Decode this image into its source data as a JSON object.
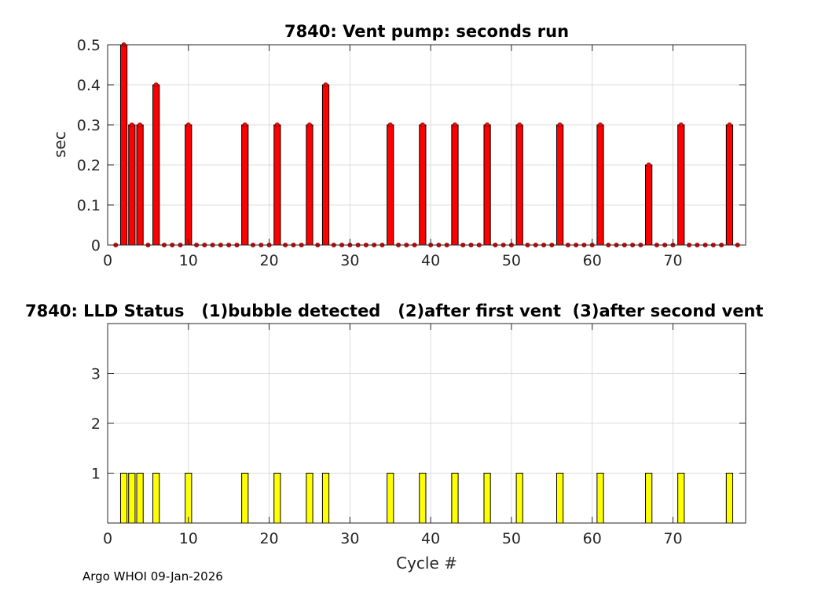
{
  "footer": "Argo WHOI 09-Jan-2026",
  "chart_data": [
    {
      "type": "bar",
      "title": "7840: Vent pump: seconds run",
      "xlabel": "",
      "ylabel": "sec",
      "xlim": [
        0,
        79
      ],
      "ylim": [
        0,
        0.5
      ],
      "xticks": [
        "0",
        "10",
        "20",
        "30",
        "40",
        "50",
        "60",
        "70"
      ],
      "yticks": [
        "0",
        "0.1",
        "0.2",
        "0.3",
        "0.4",
        "0.5"
      ],
      "grid": true,
      "bar_color": "#ff0000",
      "marker_color": "#ff0000",
      "x": [
        1,
        2,
        3,
        4,
        5,
        6,
        7,
        8,
        9,
        10,
        11,
        12,
        13,
        14,
        15,
        16,
        17,
        18,
        19,
        20,
        21,
        22,
        23,
        24,
        25,
        26,
        27,
        28,
        29,
        30,
        31,
        32,
        33,
        34,
        35,
        36,
        37,
        38,
        39,
        40,
        41,
        42,
        43,
        44,
        45,
        46,
        47,
        48,
        49,
        50,
        51,
        52,
        53,
        54,
        55,
        56,
        57,
        58,
        59,
        60,
        61,
        62,
        63,
        64,
        65,
        66,
        67,
        68,
        69,
        70,
        71,
        72,
        73,
        74,
        75,
        76,
        77,
        78
      ],
      "values": [
        0,
        0.5,
        0.3,
        0.3,
        0,
        0.4,
        0,
        0,
        0,
        0.3,
        0,
        0,
        0,
        0,
        0,
        0,
        0.3,
        0,
        0,
        0,
        0.3,
        0,
        0,
        0,
        0.3,
        0,
        0.4,
        0,
        0,
        0,
        0,
        0,
        0,
        0,
        0.3,
        0,
        0,
        0,
        0.3,
        0,
        0,
        0,
        0.3,
        0,
        0,
        0,
        0.3,
        0,
        0,
        0,
        0.3,
        0,
        0,
        0,
        0,
        0.3,
        0,
        0,
        0,
        0,
        0.3,
        0,
        0,
        0,
        0,
        0,
        0.2,
        0,
        0,
        0,
        0.3,
        0,
        0,
        0,
        0,
        0,
        0.3,
        0
      ]
    },
    {
      "type": "bar",
      "title": "7840: LLD Status   (1)bubble detected   (2)after first vent  (3)after second vent",
      "xlabel": "Cycle #",
      "ylabel": "",
      "xlim": [
        0,
        79
      ],
      "ylim": [
        0,
        4
      ],
      "xticks": [
        "0",
        "10",
        "20",
        "30",
        "40",
        "50",
        "60",
        "70"
      ],
      "yticks": [
        "1",
        "2",
        "3"
      ],
      "grid": true,
      "bar_color": "#ffff00",
      "x": [
        1,
        2,
        3,
        4,
        5,
        6,
        7,
        8,
        9,
        10,
        11,
        12,
        13,
        14,
        15,
        16,
        17,
        18,
        19,
        20,
        21,
        22,
        23,
        24,
        25,
        26,
        27,
        28,
        29,
        30,
        31,
        32,
        33,
        34,
        35,
        36,
        37,
        38,
        39,
        40,
        41,
        42,
        43,
        44,
        45,
        46,
        47,
        48,
        49,
        50,
        51,
        52,
        53,
        54,
        55,
        56,
        57,
        58,
        59,
        60,
        61,
        62,
        63,
        64,
        65,
        66,
        67,
        68,
        69,
        70,
        71,
        72,
        73,
        74,
        75,
        76,
        77,
        78
      ],
      "values": [
        0,
        1,
        1,
        1,
        0,
        1,
        0,
        0,
        0,
        1,
        0,
        0,
        0,
        0,
        0,
        0,
        1,
        0,
        0,
        0,
        1,
        0,
        0,
        0,
        1,
        0,
        1,
        0,
        0,
        0,
        0,
        0,
        0,
        0,
        1,
        0,
        0,
        0,
        1,
        0,
        0,
        0,
        1,
        0,
        0,
        0,
        1,
        0,
        0,
        0,
        1,
        0,
        0,
        0,
        0,
        1,
        0,
        0,
        0,
        0,
        1,
        0,
        0,
        0,
        0,
        0,
        1,
        0,
        0,
        0,
        1,
        0,
        0,
        0,
        0,
        0,
        1,
        0
      ]
    }
  ]
}
